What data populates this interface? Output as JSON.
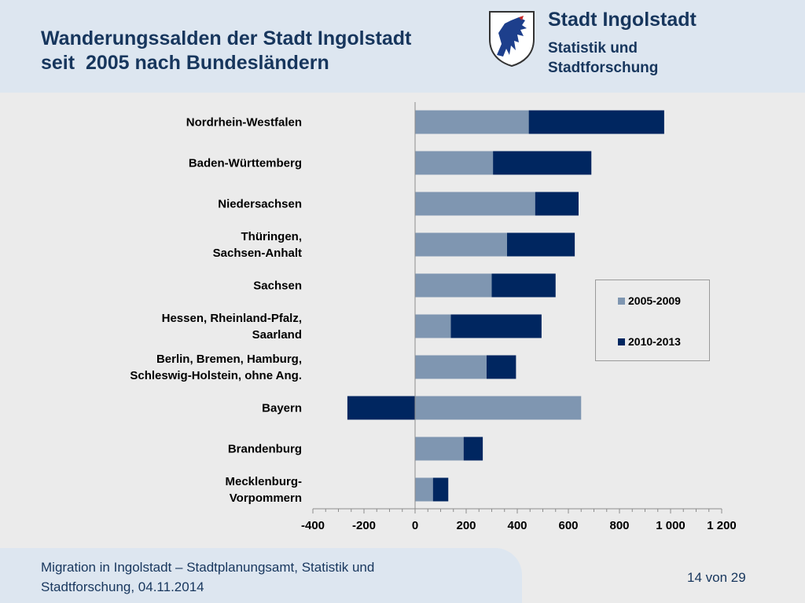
{
  "header": {
    "title_line1": "Wanderungssalden der Stadt Ingolstadt",
    "title_line2": "seit  2005 nach Bundesländern",
    "org_name": "Stadt Ingolstadt",
    "org_dept_line1": "Statistik und",
    "org_dept_line2": "Stadtforschung",
    "crest_icon": "panther-crest-icon"
  },
  "footer": {
    "line1": "Migration in Ingolstadt – Stadtplanungsamt, Statistik und",
    "line2": "Stadtforschung, 04.11.2014",
    "page": "14 von 29"
  },
  "colors": {
    "series_2005_2009": "#7f96b1",
    "series_2010_2013": "#002660",
    "header_bg": "#dde6f0",
    "text_dark": "#17365d"
  },
  "chart_data": {
    "type": "bar",
    "orientation": "horizontal",
    "stacked": true,
    "categories": [
      [
        "Nordrhein-Westfalen"
      ],
      [
        "Baden-Württemberg"
      ],
      [
        "Niedersachsen"
      ],
      [
        "Thüringen,",
        "Sachsen-Anhalt"
      ],
      [
        "Sachsen"
      ],
      [
        "Hessen, Rheinland-Pfalz,",
        "Saarland"
      ],
      [
        "Berlin, Bremen, Hamburg,",
        "Schleswig-Holstein, ohne Ang."
      ],
      [
        "Bayern"
      ],
      [
        "Brandenburg"
      ],
      [
        "Mecklenburg-",
        "Vorpommern"
      ]
    ],
    "series": [
      {
        "name": "2005-2009",
        "color": "#7f96b1",
        "values": [
          445,
          305,
          470,
          360,
          300,
          140,
          280,
          650,
          190,
          70
        ]
      },
      {
        "name": "2010-2013",
        "color": "#002660",
        "values": [
          530,
          385,
          170,
          265,
          250,
          355,
          115,
          -265,
          75,
          60
        ]
      }
    ],
    "xlim": [
      -400,
      1200
    ],
    "xticks": [
      -400,
      -200,
      0,
      200,
      400,
      600,
      800,
      1000,
      1200
    ],
    "xtick_labels": [
      "-400",
      "-200",
      "0",
      "200",
      "400",
      "600",
      "800",
      "1 000",
      "1 200"
    ],
    "legend_position": "right",
    "grid": false
  }
}
